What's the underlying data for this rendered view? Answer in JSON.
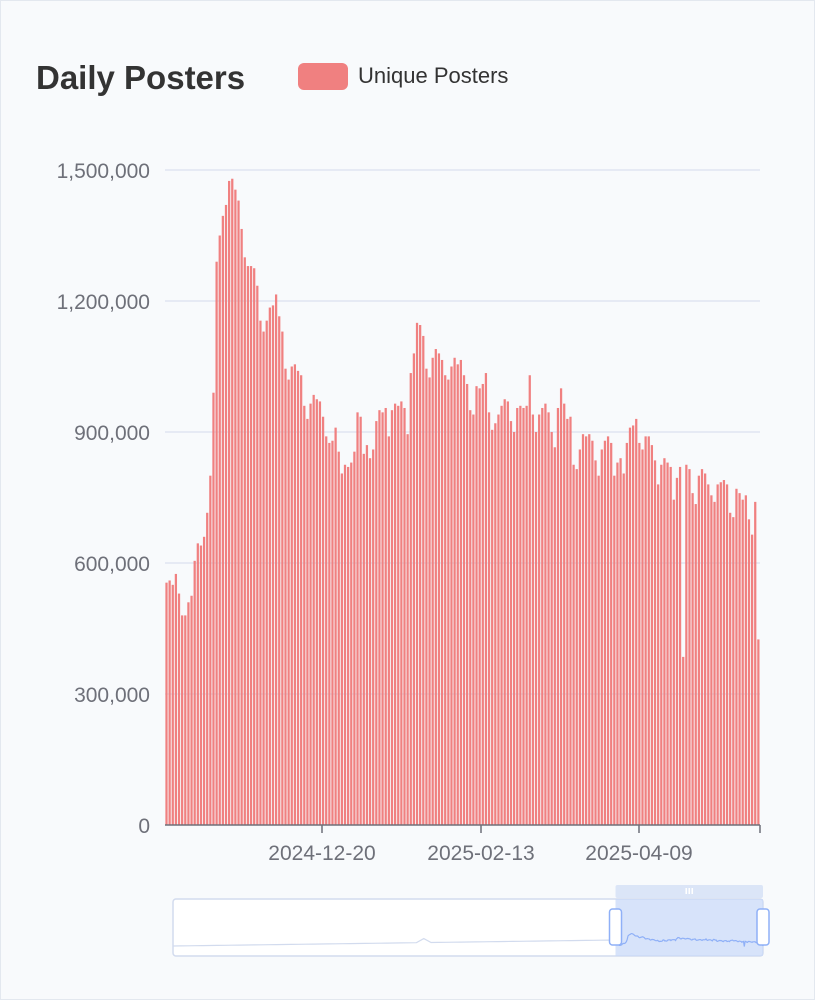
{
  "chart_data": {
    "type": "bar",
    "title": "Daily Posters",
    "series": [
      {
        "name": "Unique Posters",
        "color": "#f08080",
        "values": [
          555000,
          560000,
          550000,
          575000,
          530000,
          480000,
          480000,
          510000,
          525000,
          605000,
          645000,
          640000,
          660000,
          715000,
          800000,
          990000,
          1290000,
          1350000,
          1395000,
          1420000,
          1475000,
          1480000,
          1455000,
          1430000,
          1365000,
          1300000,
          1280000,
          1280000,
          1275000,
          1235000,
          1155000,
          1130000,
          1155000,
          1185000,
          1190000,
          1215000,
          1165000,
          1130000,
          1045000,
          1020000,
          1050000,
          1055000,
          1040000,
          1030000,
          960000,
          930000,
          965000,
          985000,
          975000,
          970000,
          935000,
          890000,
          875000,
          880000,
          910000,
          855000,
          805000,
          825000,
          820000,
          830000,
          855000,
          945000,
          935000,
          850000,
          870000,
          840000,
          860000,
          925000,
          950000,
          945000,
          955000,
          890000,
          950000,
          965000,
          960000,
          970000,
          955000,
          895000,
          1035000,
          1080000,
          1150000,
          1145000,
          1120000,
          1045000,
          1025000,
          1070000,
          1090000,
          1080000,
          1065000,
          1030000,
          1020000,
          1050000,
          1070000,
          1055000,
          1065000,
          1030000,
          1010000,
          950000,
          940000,
          1005000,
          1000000,
          1010000,
          1035000,
          945000,
          905000,
          920000,
          940000,
          960000,
          975000,
          970000,
          925000,
          900000,
          955000,
          960000,
          955000,
          960000,
          1030000,
          940000,
          900000,
          940000,
          955000,
          965000,
          945000,
          900000,
          865000,
          955000,
          1000000,
          965000,
          930000,
          935000,
          825000,
          815000,
          860000,
          895000,
          890000,
          895000,
          880000,
          835000,
          800000,
          860000,
          880000,
          890000,
          875000,
          800000,
          830000,
          840000,
          805000,
          875000,
          910000,
          915000,
          930000,
          875000,
          860000,
          890000,
          890000,
          870000,
          835000,
          780000,
          825000,
          840000,
          830000,
          820000,
          745000,
          795000,
          820000,
          385000,
          825000,
          815000,
          760000,
          735000,
          800000,
          815000,
          805000,
          780000,
          755000,
          740000,
          780000,
          785000,
          790000,
          780000,
          715000,
          705000,
          770000,
          760000,
          745000,
          755000,
          700000,
          665000,
          740000,
          425000
        ]
      }
    ],
    "y_ticks": [
      "1,500,000",
      "1,200,000",
      "900,000",
      "600,000",
      "300,000",
      "0"
    ],
    "x_ticks": [
      "2024-12-20",
      "2025-02-13",
      "2025-04-09"
    ],
    "ylim": [
      0,
      1500000
    ],
    "grid": true,
    "legend_position": "top-center",
    "zoom": {
      "start_percent": 75,
      "end_percent": 100
    }
  }
}
